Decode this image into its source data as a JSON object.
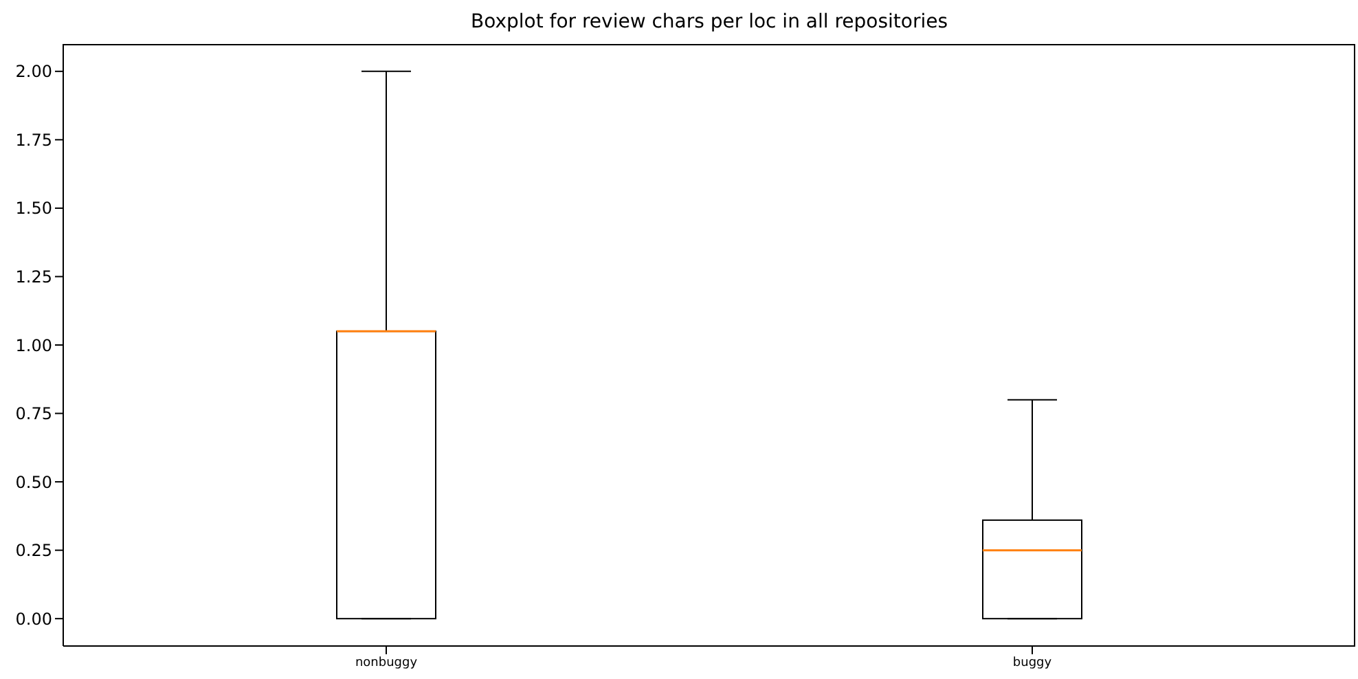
{
  "chart_data": {
    "type": "box",
    "title": "Boxplot for review chars per loc in all repositories",
    "categories": [
      "nonbuggy",
      "buggy"
    ],
    "series": [
      {
        "color": "#000000",
        "boxes": [
          {
            "low": 0,
            "q1": 0,
            "median": 1.05,
            "q3": 1.05,
            "high": 2.0
          },
          {
            "low": 0,
            "q1": 0,
            "median": 0.25,
            "q3": 0.36,
            "high": 0.8
          }
        ]
      }
    ],
    "ylim": [
      -0.1,
      2.1
    ],
    "yticks": [
      {
        "value": 0,
        "label": "0.00"
      },
      {
        "value": 0.25,
        "label": "0.25"
      },
      {
        "value": 0.5,
        "label": "0.50"
      },
      {
        "value": 0.75,
        "label": "0.75"
      },
      {
        "value": 1,
        "label": "1.00"
      },
      {
        "value": 1.25,
        "label": "1.25"
      },
      {
        "value": 1.5,
        "label": "1.50"
      },
      {
        "value": 1.75,
        "label": "1.75"
      },
      {
        "value": 2,
        "label": "2.00"
      }
    ]
  }
}
